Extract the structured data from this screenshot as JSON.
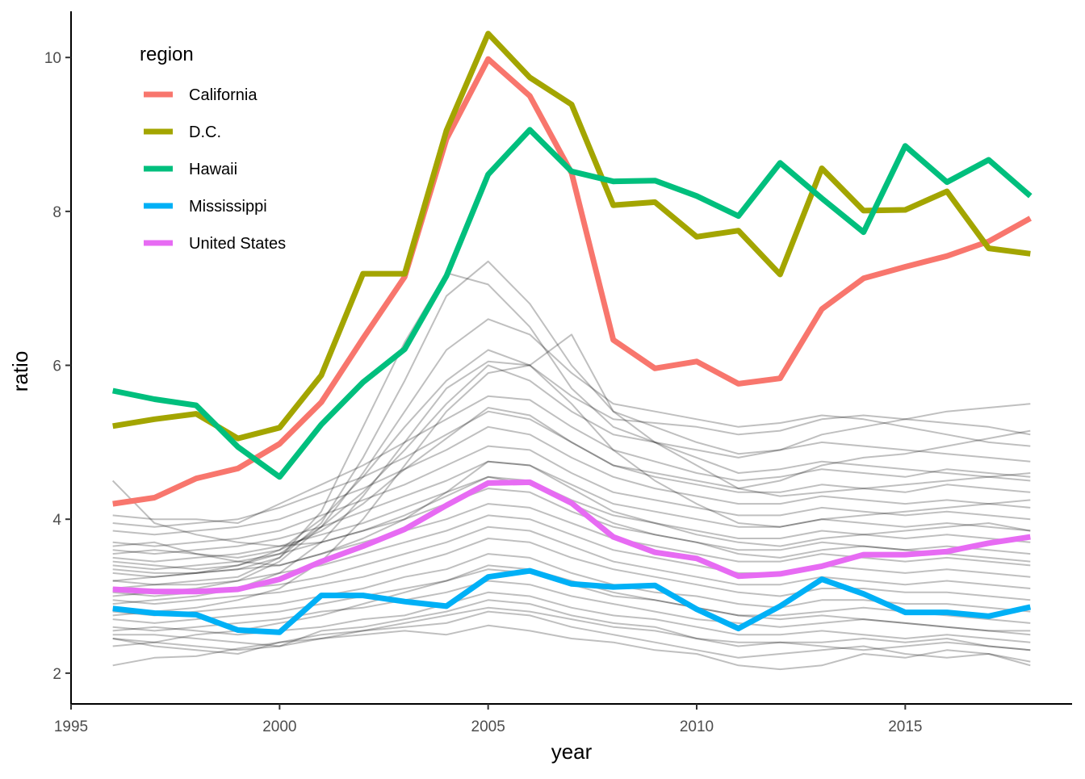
{
  "chart_data": {
    "type": "line",
    "xlabel": "year",
    "ylabel": "ratio",
    "xlim": [
      1995,
      2019
    ],
    "ylim": [
      1.6,
      10.6
    ],
    "x_ticks": [
      1995,
      2000,
      2005,
      2010,
      2015
    ],
    "y_ticks": [
      2,
      4,
      6,
      8,
      10
    ],
    "grid": false,
    "legend": {
      "title": "region",
      "placement": "top-left"
    },
    "x": [
      1996,
      1997,
      1998,
      1999,
      2000,
      2001,
      2002,
      2003,
      2004,
      2005,
      2006,
      2007,
      2008,
      2009,
      2010,
      2011,
      2012,
      2013,
      2014,
      2015,
      2016,
      2017,
      2018
    ],
    "series": [
      {
        "name": "California",
        "color": "#F8766D",
        "values": [
          4.2,
          4.28,
          4.53,
          4.66,
          4.98,
          5.52,
          6.35,
          7.15,
          8.94,
          9.98,
          9.5,
          8.5,
          6.33,
          5.96,
          6.05,
          5.76,
          5.83,
          6.73,
          7.13,
          7.28,
          7.42,
          7.61,
          7.91
        ]
      },
      {
        "name": "D.C.",
        "color": "#A3A500",
        "values": [
          5.21,
          5.3,
          5.37,
          5.05,
          5.19,
          5.87,
          7.19,
          7.19,
          9.05,
          10.31,
          9.74,
          9.39,
          8.08,
          8.12,
          7.67,
          7.75,
          7.18,
          8.56,
          8.01,
          8.02,
          8.26,
          7.52,
          7.45
        ]
      },
      {
        "name": "Hawaii",
        "color": "#00BF7D",
        "values": [
          5.67,
          5.56,
          5.48,
          4.94,
          4.55,
          5.23,
          5.78,
          6.21,
          7.16,
          8.48,
          9.06,
          8.52,
          8.39,
          8.4,
          8.2,
          7.94,
          8.63,
          8.17,
          7.73,
          8.85,
          8.38,
          8.67,
          8.2
        ]
      },
      {
        "name": "Mississippi",
        "color": "#00B0F6",
        "values": [
          2.84,
          2.78,
          2.76,
          2.56,
          2.53,
          3.01,
          3.01,
          2.93,
          2.87,
          3.25,
          3.33,
          3.16,
          3.12,
          3.14,
          2.83,
          2.58,
          2.87,
          3.22,
          3.03,
          2.79,
          2.79,
          2.74,
          2.86
        ]
      },
      {
        "name": "United States",
        "color": "#E76BF3",
        "values": [
          3.09,
          3.06,
          3.06,
          3.09,
          3.22,
          3.45,
          3.65,
          3.87,
          4.18,
          4.47,
          4.48,
          4.21,
          3.77,
          3.57,
          3.49,
          3.26,
          3.29,
          3.39,
          3.54,
          3.54,
          3.58,
          3.69,
          3.77
        ]
      }
    ],
    "background_series": [
      [
        2.1,
        2.2,
        2.22,
        2.32,
        2.4,
        2.45,
        2.5,
        2.55,
        2.5,
        2.62,
        2.55,
        2.45,
        2.4,
        2.3,
        2.25,
        2.1,
        2.05,
        2.1,
        2.25,
        2.2,
        2.3,
        2.25,
        2.1
      ],
      [
        2.45,
        2.35,
        2.3,
        2.25,
        2.4,
        2.5,
        2.55,
        2.6,
        2.65,
        2.8,
        2.75,
        2.6,
        2.5,
        2.4,
        2.3,
        2.2,
        2.25,
        2.3,
        2.35,
        2.25,
        2.2,
        2.25,
        2.15
      ],
      [
        2.5,
        2.5,
        2.45,
        2.4,
        2.35,
        2.55,
        2.6,
        2.7,
        2.8,
        2.95,
        2.9,
        2.75,
        2.65,
        2.6,
        2.45,
        2.35,
        2.4,
        2.4,
        2.45,
        2.4,
        2.45,
        2.35,
        2.3
      ],
      [
        2.55,
        2.6,
        2.55,
        2.5,
        2.55,
        2.6,
        2.7,
        2.75,
        2.9,
        3.05,
        3.0,
        2.85,
        2.75,
        2.7,
        2.6,
        2.5,
        2.5,
        2.55,
        2.5,
        2.45,
        2.5,
        2.45,
        2.4
      ],
      [
        2.6,
        2.55,
        2.6,
        2.65,
        2.7,
        2.8,
        2.85,
        2.95,
        3.05,
        3.2,
        3.15,
        3.0,
        2.9,
        2.8,
        2.7,
        2.65,
        2.6,
        2.65,
        2.7,
        2.65,
        2.6,
        2.55,
        2.55
      ],
      [
        2.7,
        2.65,
        2.7,
        2.75,
        2.8,
        2.9,
        3.0,
        3.1,
        3.2,
        3.35,
        3.3,
        3.15,
        3.0,
        2.95,
        2.85,
        2.75,
        2.75,
        2.8,
        2.85,
        2.8,
        2.75,
        2.7,
        2.65
      ],
      [
        2.8,
        2.75,
        2.8,
        2.85,
        2.9,
        3.0,
        3.1,
        3.25,
        3.35,
        3.55,
        3.5,
        3.3,
        3.15,
        3.05,
        3.0,
        2.9,
        2.85,
        2.95,
        2.95,
        2.9,
        2.9,
        2.85,
        2.8
      ],
      [
        2.95,
        2.9,
        2.95,
        3.0,
        3.05,
        3.15,
        3.25,
        3.4,
        3.55,
        3.75,
        3.7,
        3.5,
        3.35,
        3.25,
        3.15,
        3.05,
        3.0,
        3.1,
        3.1,
        3.05,
        3.05,
        3.0,
        2.95
      ],
      [
        3.05,
        3.0,
        3.05,
        3.1,
        3.15,
        3.25,
        3.4,
        3.55,
        3.7,
        3.9,
        3.85,
        3.65,
        3.45,
        3.35,
        3.25,
        3.15,
        3.15,
        3.25,
        3.2,
        3.15,
        3.2,
        3.15,
        3.1
      ],
      [
        3.2,
        3.15,
        3.15,
        3.2,
        3.3,
        3.4,
        3.55,
        3.7,
        3.85,
        4.05,
        4.0,
        3.8,
        3.6,
        3.5,
        3.4,
        3.3,
        3.3,
        3.4,
        3.35,
        3.3,
        3.35,
        3.3,
        3.25
      ],
      [
        3.3,
        3.25,
        3.3,
        3.35,
        3.4,
        3.55,
        3.7,
        3.85,
        4.0,
        4.2,
        4.15,
        3.95,
        3.75,
        3.65,
        3.55,
        3.45,
        3.45,
        3.55,
        3.5,
        3.45,
        3.5,
        3.45,
        3.4
      ],
      [
        3.4,
        3.35,
        3.4,
        3.45,
        3.55,
        3.7,
        3.85,
        4.0,
        4.2,
        4.4,
        4.35,
        4.1,
        3.9,
        3.8,
        3.7,
        3.6,
        3.6,
        3.7,
        3.65,
        3.6,
        3.65,
        3.6,
        3.55
      ],
      [
        3.5,
        3.45,
        3.5,
        3.55,
        3.65,
        3.8,
        3.95,
        4.15,
        4.35,
        4.55,
        4.5,
        4.25,
        4.05,
        3.95,
        3.85,
        3.75,
        3.75,
        3.85,
        3.8,
        3.75,
        3.8,
        3.75,
        3.7
      ],
      [
        3.6,
        3.55,
        3.6,
        3.65,
        3.75,
        3.9,
        4.1,
        4.3,
        4.5,
        4.75,
        4.7,
        4.45,
        4.2,
        4.1,
        4.0,
        3.9,
        3.9,
        4.0,
        3.95,
        3.9,
        3.95,
        3.9,
        3.85
      ],
      [
        3.7,
        3.65,
        3.7,
        3.75,
        3.85,
        4.05,
        4.25,
        4.45,
        4.7,
        4.95,
        4.9,
        4.6,
        4.35,
        4.25,
        4.15,
        4.05,
        4.05,
        4.15,
        4.1,
        4.05,
        4.1,
        4.05,
        4.0
      ],
      [
        3.85,
        3.8,
        3.85,
        3.9,
        4.0,
        4.2,
        4.4,
        4.65,
        4.9,
        5.2,
        5.1,
        4.8,
        4.55,
        4.4,
        4.3,
        4.2,
        4.2,
        4.3,
        4.25,
        4.2,
        4.25,
        4.2,
        4.15
      ],
      [
        3.95,
        3.9,
        3.95,
        4.0,
        4.15,
        4.35,
        4.55,
        4.8,
        5.1,
        5.4,
        5.3,
        5.0,
        4.7,
        4.55,
        4.45,
        4.35,
        4.35,
        4.45,
        4.4,
        4.35,
        4.45,
        4.4,
        4.35
      ],
      [
        4.05,
        4.0,
        4.0,
        3.95,
        4.2,
        4.45,
        4.7,
        5.0,
        5.3,
        5.6,
        5.55,
        5.2,
        4.9,
        4.75,
        4.6,
        4.5,
        4.55,
        4.65,
        4.6,
        4.55,
        4.65,
        4.6,
        4.55
      ],
      [
        2.35,
        2.4,
        2.5,
        2.55,
        2.65,
        2.75,
        2.9,
        3.05,
        3.2,
        3.4,
        3.35,
        3.2,
        3.05,
        2.95,
        2.85,
        2.75,
        2.7,
        2.75,
        2.7,
        2.65,
        2.6,
        2.55,
        2.5
      ],
      [
        3.55,
        3.6,
        3.55,
        3.5,
        3.6,
        3.85,
        4.2,
        4.65,
        5.05,
        5.45,
        5.35,
        5.0,
        4.7,
        4.6,
        4.5,
        4.4,
        4.5,
        4.7,
        4.8,
        4.85,
        4.95,
        5.05,
        5.15
      ],
      [
        3.45,
        3.4,
        3.35,
        3.4,
        3.55,
        3.9,
        4.35,
        4.9,
        5.5,
        6.0,
        5.8,
        5.4,
        5.1,
        5.0,
        4.9,
        4.8,
        4.9,
        5.1,
        5.2,
        5.3,
        5.4,
        5.45,
        5.5
      ],
      [
        3.2,
        3.25,
        3.3,
        3.4,
        3.6,
        4.0,
        4.55,
        5.2,
        5.8,
        6.2,
        6.0,
        5.6,
        5.3,
        5.25,
        5.2,
        5.1,
        5.15,
        5.3,
        5.35,
        5.3,
        5.25,
        5.2,
        5.1
      ],
      [
        3.0,
        3.05,
        3.1,
        3.2,
        3.45,
        3.9,
        4.6,
        5.4,
        6.2,
        6.6,
        6.4,
        5.9,
        5.5,
        5.4,
        5.3,
        5.2,
        5.25,
        5.35,
        5.3,
        5.2,
        5.1,
        5.0,
        4.95
      ],
      [
        3.35,
        3.3,
        3.3,
        3.35,
        3.5,
        3.95,
        4.8,
        5.8,
        6.9,
        7.35,
        6.8,
        6.0,
        5.4,
        5.2,
        5.0,
        4.85,
        4.9,
        5.0,
        4.95,
        4.9,
        4.85,
        4.8,
        4.75
      ],
      [
        3.1,
        3.15,
        3.2,
        3.25,
        3.5,
        4.1,
        5.2,
        6.3,
        7.2,
        7.05,
        6.5,
        5.7,
        5.2,
        5.0,
        4.8,
        4.6,
        4.65,
        4.75,
        4.7,
        4.65,
        4.6,
        4.55,
        4.5
      ],
      [
        2.9,
        2.95,
        3.0,
        3.1,
        3.3,
        3.7,
        4.3,
        5.0,
        5.7,
        6.05,
        6.0,
        6.4,
        5.4,
        5.0,
        4.7,
        4.4,
        4.3,
        4.35,
        4.4,
        4.45,
        4.5,
        4.55,
        4.6
      ],
      [
        2.75,
        2.8,
        2.85,
        2.95,
        3.1,
        3.45,
        4.0,
        4.7,
        5.4,
        5.9,
        6.0,
        5.5,
        4.9,
        4.5,
        4.2,
        3.95,
        3.9,
        4.0,
        4.05,
        4.1,
        4.15,
        4.2,
        4.25
      ],
      [
        3.65,
        3.7,
        3.55,
        3.45,
        3.4,
        3.55,
        3.75,
        4.0,
        4.35,
        4.75,
        4.7,
        4.4,
        4.1,
        3.95,
        3.8,
        3.7,
        3.65,
        3.75,
        3.8,
        3.85,
        3.9,
        3.95,
        3.85
      ],
      [
        4.5,
        3.95,
        3.8,
        3.7,
        3.65,
        3.7,
        3.85,
        4.05,
        4.3,
        4.55,
        4.45,
        4.2,
        3.95,
        3.8,
        3.7,
        3.55,
        3.5,
        3.6,
        3.65,
        3.6,
        3.55,
        3.5,
        3.45
      ],
      [
        2.45,
        2.4,
        2.35,
        2.3,
        2.35,
        2.45,
        2.55,
        2.65,
        2.75,
        2.85,
        2.8,
        2.7,
        2.6,
        2.55,
        2.45,
        2.4,
        2.4,
        2.35,
        2.3,
        2.35,
        2.4,
        2.35,
        2.3
      ]
    ]
  }
}
